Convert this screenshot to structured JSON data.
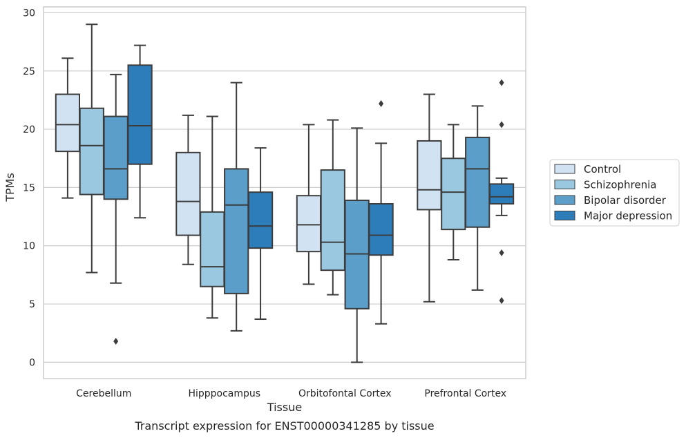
{
  "caption": "Transcript expression for ENST00000341285 by tissue",
  "chart_data": {
    "type": "box",
    "xlabel": "Tissue",
    "ylabel": "TPMs",
    "ylim": [
      -1.4,
      30.5
    ],
    "yticks": [
      0,
      5,
      10,
      15,
      20,
      25,
      30
    ],
    "grid": true,
    "legend_position": "right",
    "categories": [
      "Cerebellum",
      "Hipppocampus",
      "Orbitofontal Cortex",
      "Prefrontal Cortex"
    ],
    "series": [
      {
        "name": "Control",
        "color": "#d1e2f2",
        "boxes": [
          {
            "whislo": 14.1,
            "q1": 18.1,
            "med": 20.4,
            "q3": 23.0,
            "whishi": 26.1,
            "fliers": []
          },
          {
            "whislo": 8.4,
            "q1": 10.9,
            "med": 13.8,
            "q3": 18.0,
            "whishi": 21.2,
            "fliers": []
          },
          {
            "whislo": 6.7,
            "q1": 9.5,
            "med": 11.8,
            "q3": 14.3,
            "whishi": 20.4,
            "fliers": []
          },
          {
            "whislo": 5.2,
            "q1": 13.1,
            "med": 14.8,
            "q3": 19.0,
            "whishi": 23.0,
            "fliers": []
          }
        ]
      },
      {
        "name": "Schizophrenia",
        "color": "#9ac8e0",
        "boxes": [
          {
            "whislo": 7.7,
            "q1": 14.4,
            "med": 18.6,
            "q3": 21.8,
            "whishi": 29.0,
            "fliers": []
          },
          {
            "whislo": 3.8,
            "q1": 6.5,
            "med": 8.2,
            "q3": 12.9,
            "whishi": 21.1,
            "fliers": []
          },
          {
            "whislo": 5.8,
            "q1": 7.9,
            "med": 10.3,
            "q3": 16.5,
            "whishi": 20.8,
            "fliers": []
          },
          {
            "whislo": 8.8,
            "q1": 11.4,
            "med": 14.6,
            "q3": 17.5,
            "whishi": 20.4,
            "fliers": []
          }
        ]
      },
      {
        "name": "Bipolar disorder",
        "color": "#5b9ec9",
        "boxes": [
          {
            "whislo": 6.8,
            "q1": 14.0,
            "med": 16.6,
            "q3": 21.1,
            "whishi": 24.7,
            "fliers": [
              1.8
            ]
          },
          {
            "whislo": 2.7,
            "q1": 5.9,
            "med": 13.5,
            "q3": 16.6,
            "whishi": 24.0,
            "fliers": []
          },
          {
            "whislo": 0.0,
            "q1": 4.6,
            "med": 9.3,
            "q3": 13.9,
            "whishi": 20.1,
            "fliers": []
          },
          {
            "whislo": 6.2,
            "q1": 11.6,
            "med": 16.6,
            "q3": 19.3,
            "whishi": 22.0,
            "fliers": []
          }
        ]
      },
      {
        "name": "Major depression",
        "color": "#2d7dbb",
        "boxes": [
          {
            "whislo": 12.4,
            "q1": 17.0,
            "med": 20.3,
            "q3": 25.5,
            "whishi": 27.2,
            "fliers": []
          },
          {
            "whislo": 3.7,
            "q1": 9.8,
            "med": 11.7,
            "q3": 14.6,
            "whishi": 18.4,
            "fliers": []
          },
          {
            "whislo": 3.3,
            "q1": 9.2,
            "med": 10.9,
            "q3": 13.6,
            "whishi": 18.8,
            "fliers": [
              22.2
            ]
          },
          {
            "whislo": 12.6,
            "q1": 13.6,
            "med": 14.2,
            "q3": 15.3,
            "whishi": 15.8,
            "fliers": [
              24.0,
              20.4,
              9.4,
              5.3
            ]
          }
        ]
      }
    ]
  }
}
